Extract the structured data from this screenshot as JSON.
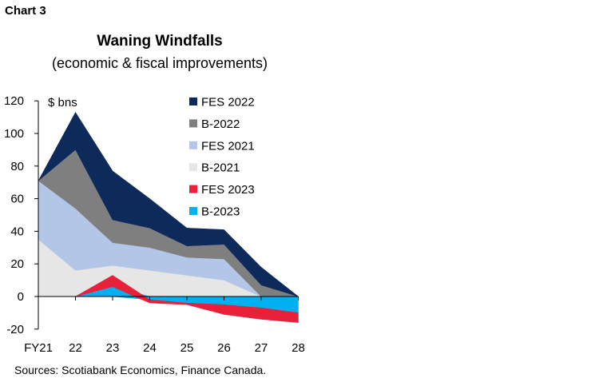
{
  "header": {
    "label": "Chart 3"
  },
  "source": "Sources: Scotiabank Economics, Finance Canada.",
  "chart_data": {
    "type": "area",
    "title": "Waning Windfalls",
    "subtitle": "(economic & fiscal improvements)",
    "unit_label": "$ bns",
    "categories": [
      "FY21",
      "22",
      "23",
      "24",
      "25",
      "26",
      "27",
      "28"
    ],
    "ylim": [
      -20,
      120
    ],
    "yticks": [
      -20,
      0,
      20,
      40,
      60,
      80,
      100,
      120
    ],
    "grid": false,
    "legend_position": "top-right",
    "series": [
      {
        "name": "B-2021",
        "color": "#e6e6e6",
        "stack": "positive",
        "values": [
          35,
          16,
          19,
          16,
          13,
          10,
          0,
          0
        ]
      },
      {
        "name": "FES 2021",
        "color": "#b4c6e7",
        "stack": "positive",
        "values": [
          36,
          38,
          14,
          14,
          11,
          13,
          0,
          0
        ]
      },
      {
        "name": "B-2022",
        "color": "#7f7f7f",
        "stack": "positive",
        "values": [
          0,
          36,
          14,
          12,
          7,
          9,
          7,
          0
        ]
      },
      {
        "name": "FES 2022",
        "color": "#0e2a5b",
        "stack": "positive",
        "values": [
          0,
          23,
          30,
          18,
          11,
          9,
          11,
          0
        ]
      },
      {
        "name": "B-2023",
        "color": "#00b0f0",
        "stack": "mixed",
        "values": [
          null,
          0,
          6,
          -2,
          -4,
          -5,
          -7,
          -10
        ]
      },
      {
        "name": "FES 2023",
        "color": "#e8203a",
        "stack": "mixed",
        "values": [
          null,
          0,
          7,
          -2,
          -1,
          -6,
          -7,
          -6
        ]
      }
    ],
    "legend_order": [
      "FES 2022",
      "B-2022",
      "FES 2021",
      "B-2021",
      "FES 2023",
      "B-2023"
    ]
  }
}
